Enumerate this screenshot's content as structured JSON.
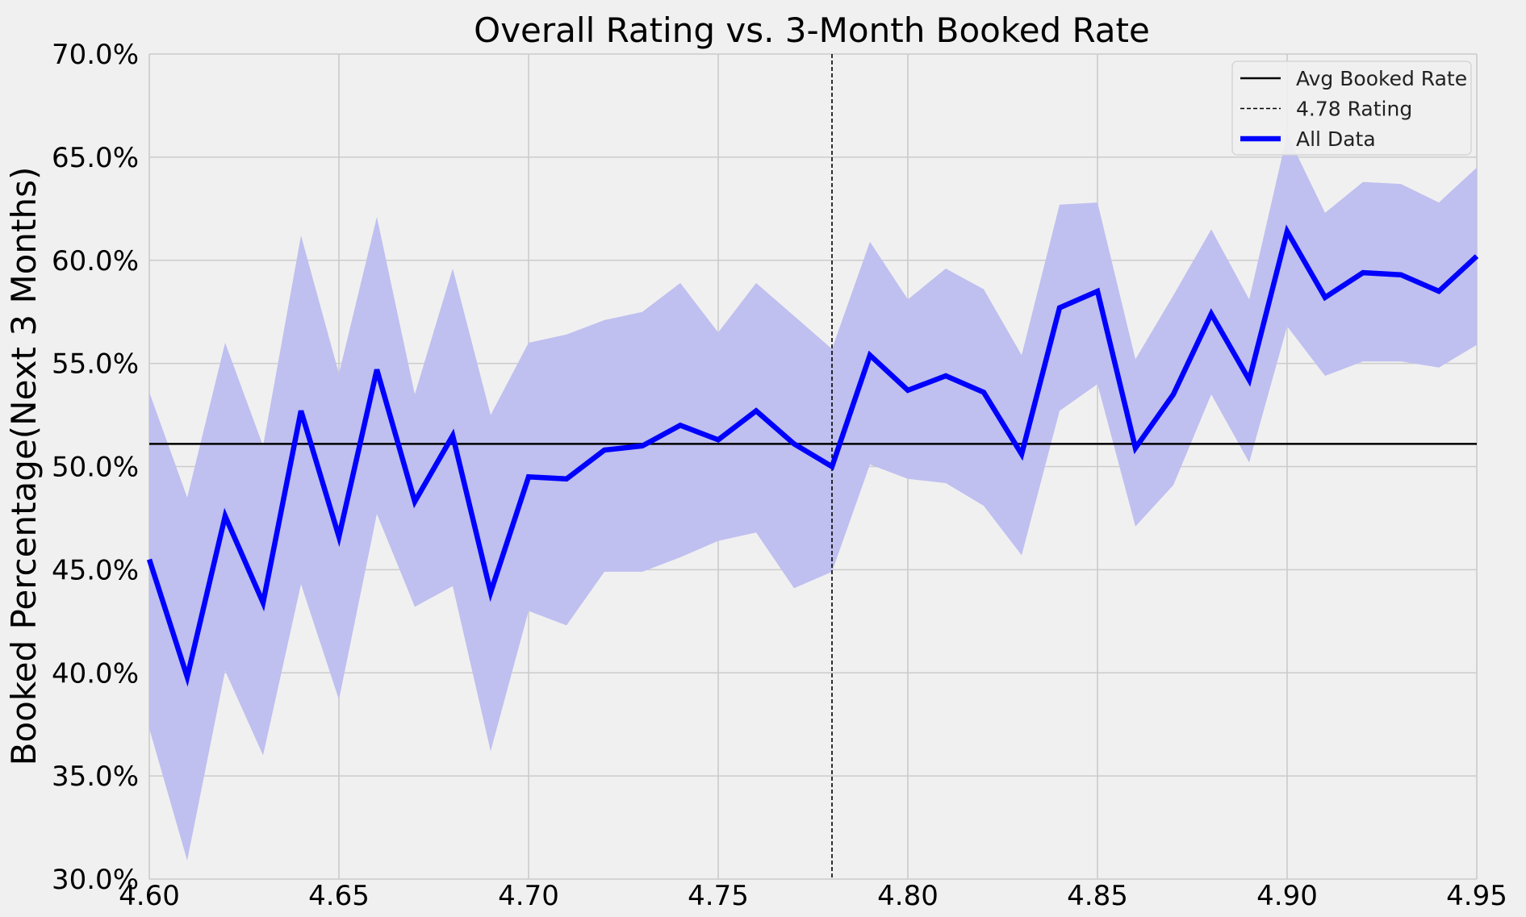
{
  "chart_data": {
    "type": "line",
    "title": "Overall Rating vs. 3-Month Booked Rate",
    "xlabel": "",
    "ylabel": "Booked Percentage(Next 3 Months)",
    "xlim": [
      4.6,
      4.95
    ],
    "ylim": [
      0.3,
      0.7
    ],
    "x_ticks": [
      4.6,
      4.65,
      4.7,
      4.75,
      4.8,
      4.85,
      4.9,
      4.95
    ],
    "x_tick_labels": [
      "4.60",
      "4.65",
      "4.70",
      "4.75",
      "4.80",
      "4.85",
      "4.90",
      "4.95"
    ],
    "y_ticks": [
      0.3,
      0.35,
      0.4,
      0.45,
      0.5,
      0.55,
      0.6,
      0.65,
      0.7
    ],
    "y_tick_labels": [
      "30.0%",
      "35.0%",
      "40.0%",
      "45.0%",
      "50.0%",
      "55.0%",
      "60.0%",
      "65.0%",
      "70.0%"
    ],
    "grid": true,
    "legend_position": "top-right",
    "x": [
      4.6,
      4.61,
      4.62,
      4.63,
      4.64,
      4.65,
      4.66,
      4.67,
      4.68,
      4.69,
      4.7,
      4.71,
      4.72,
      4.73,
      4.74,
      4.75,
      4.76,
      4.77,
      4.78,
      4.79,
      4.8,
      4.81,
      4.82,
      4.83,
      4.84,
      4.85,
      4.86,
      4.87,
      4.88,
      4.89,
      4.9,
      4.91,
      4.92,
      4.93,
      4.94,
      4.95
    ],
    "series": [
      {
        "name": "All Data",
        "color": "#0000ff",
        "values": [
          0.455,
          0.398,
          0.476,
          0.434,
          0.527,
          0.466,
          0.547,
          0.483,
          0.515,
          0.439,
          0.495,
          0.494,
          0.508,
          0.51,
          0.52,
          0.513,
          0.527,
          0.511,
          0.5,
          0.554,
          0.537,
          0.544,
          0.536,
          0.506,
          0.577,
          0.585,
          0.509,
          0.535,
          0.574,
          0.542,
          0.614,
          0.582,
          0.594,
          0.593,
          0.585,
          0.602
        ],
        "band_lower": [
          0.373,
          0.309,
          0.401,
          0.36,
          0.443,
          0.387,
          0.477,
          0.432,
          0.442,
          0.362,
          0.43,
          0.423,
          0.449,
          0.449,
          0.456,
          0.464,
          0.468,
          0.441,
          0.449,
          0.501,
          0.494,
          0.492,
          0.481,
          0.457,
          0.527,
          0.54,
          0.471,
          0.491,
          0.535,
          0.502,
          0.568,
          0.544,
          0.551,
          0.551,
          0.548,
          0.559
        ],
        "band_upper": [
          0.536,
          0.485,
          0.56,
          0.51,
          0.612,
          0.545,
          0.621,
          0.535,
          0.596,
          0.525,
          0.56,
          0.564,
          0.571,
          0.575,
          0.589,
          0.565,
          0.589,
          0.573,
          0.557,
          0.609,
          0.581,
          0.596,
          0.586,
          0.554,
          0.627,
          0.628,
          0.552,
          0.583,
          0.615,
          0.581,
          0.661,
          0.623,
          0.638,
          0.637,
          0.628,
          0.645
        ],
        "band_color": "#bfbff0"
      }
    ],
    "reference_lines": [
      {
        "name": "Avg Booked Rate",
        "orientation": "horizontal",
        "value": 0.511,
        "style": "solid",
        "color": "#000000"
      },
      {
        "name": "4.78 Rating",
        "orientation": "vertical",
        "value": 4.78,
        "style": "dashed",
        "color": "#000000"
      }
    ],
    "legend": [
      {
        "label": "Avg Booked Rate",
        "style": "solid-thin",
        "color": "#000000"
      },
      {
        "label": "4.78 Rating",
        "style": "dashed",
        "color": "#000000"
      },
      {
        "label": "All Data",
        "style": "solid-thick",
        "color": "#0000ff"
      }
    ],
    "background_color": "#f0f0f0",
    "grid_color": "#cbcbcb"
  }
}
